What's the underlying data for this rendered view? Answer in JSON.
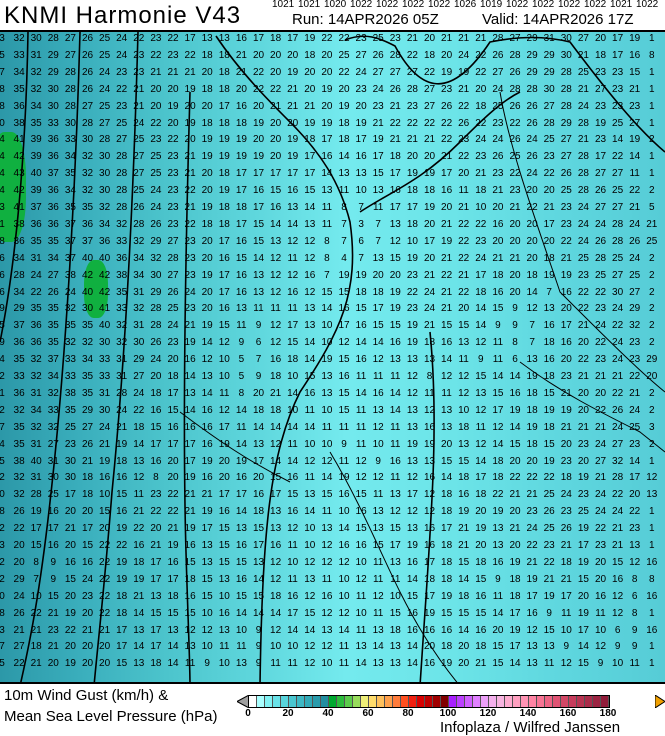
{
  "header": {
    "title": "KNMI Harmonie V43",
    "run": "Run: 14APR2026 05Z",
    "valid": "Valid: 14APR2026 17Z"
  },
  "map": {
    "credit": "Infoplaza / Wilfred Janssen",
    "isobar_labels": [
      "1021",
      "1021",
      "1020",
      "1022",
      "1022",
      "1022",
      "1022",
      "1026",
      "1019",
      "1022",
      "1022",
      "1022",
      "1022",
      "1021",
      "1022"
    ],
    "gust_rows": [
      "3 32 30 28 27 26 25 24 22 23 22 17 13 13 16 17 18 17 19 22 22 23 25 23 21 20 21 21 21 28 27 29 31 30 27 20 17 19 1",
      "5 33 31 29 27 26 25 24 23 22 23 22 18 18 21 20 20 20 18 20 25 27 26 28 22 18 20 24 22 26 28 29 29 30 21 18 17 16 8",
      "7 34 32 29 28 26 24 23 23 21 21 21 20 18 21 22 20 19 20 20 22 24 27 27 27 22 19 19 22 27 26 29 29 28 25 23 23 15 1",
      "8 35 32 30 28 26 24 22 21 20 20 19 18 18 20 22 22 21 20 19 20 23 24 26 28 27 23 21 20 24 28 28 30 28 21 27 23 21 1",
      "8 36 34 30 28 27 25 23 21 20 19 20 20 17 16 20 21 21 21 20 19 20 23 21 23 27 26 22 18 25 26 26 27 28 24 23 23 23 1",
      "0 38 35 33 30 28 27 25 24 22 20 19 18 18 18 19 20 20 19 19 18 19 21 22 22 22 22 26 22 23 22 26 28 29 28 19 25 27 1",
      "4 41 39 36 33 30 28 27 25 23 22 20 19 19 19 20 20 19 18 17 18 17 19 21 21 21 22 23 24 24 26 24 25 27 21 23 14 19 2",
      "4 42 39 36 34 32 30 28 27 25 23 21 19 19 19 19 20 19 17 16 14 16 17 18 20 20 21 22 23 26 25 26 23 27 28 17 22 14 1",
      "4 43 40 37 35 32 30 28 27 25 23 21 20 18 17 17 17 17 17 14 13 13 15 17 19 19 17 20 21 23 22 24 22 26 28 27 27 11 1",
      "4 42 39 36 34 32 30 28 25 24 23 22 20 19 17 16 15 16 15 13 11 10 13 16 18 18 16 11 18 21 23 20 20 25 28 26 25 22 2",
      "3 41 37 36 35 35 32 28 26 24 23 21 19 18 18 17 16 13 14 11 8 7 11 17 17 19 20 21 10 20 21 22 21 23 24 27 27 21 5",
      "1 38 36 36 37 36 34 32 28 26 23 22 18 18 17 15 14 14 13 11 7 3 7 13 18 20 21 22 22 16 20 20 17 23 24 24 28 24 21",
      "8 36 35 35 37 37 36 33 32 29 27 23 20 17 16 15 13 12 12 8 7 6 7 12 10 17 19 22 23 20 20 20 20 22 24 26 28 26 25",
      "6 34 31 34 37 40 40 36 34 32 28 23 20 16 15 14 12 11 12 8 4 7 13 15 19 20 21 22 24 21 21 20 18 21 25 28 25 24 2",
      "6 28 24 27 38 42 42 38 34 30 27 23 19 17 16 13 12 12 16 7 19 19 20 20 23 21 22 21 17 18 20 18 19 19 23 25 27 25 2",
      "6 34 22 26 24 40 42 35 31 29 26 24 20 17 16 13 12 16 12 15 15 18 18 19 22 24 21 22 18 16 20 14 7 16 22 22 30 27 2",
      "9 29 35 35 32 30 41 33 32 28 25 23 20 16 13 11 11 11 13 14 16 15 17 19 23 24 21 20 14 15 9 12 13 20 22 23 24 29 2",
      "5 37 36 35 35 35 40 32 31 28 24 21 19 15 11 9 12 17 13 10 17 16 15 15 19 21 15 15 14 9 9 7 16 17 21 24 22 32 2",
      "9 36 36 35 32 32 30 32 30 26 23 19 14 12 9 6 12 15 14 10 12 14 14 16 19 18 16 13 12 11 8 7 18 16 20 22 24 23 2",
      "4 35 32 37 33 34 33 31 29 24 20 16 12 10 5 7 16 18 14 19 15 16 12 13 13 13 14 11 9 11 6 13 16 20 22 23 24 23 29",
      "2 33 32 34 33 35 33 31 27 20 18 14 13 10 5 9 18 10 15 13 16 11 11 11 12 8 12 12 15 14 14 19 18 23 21 21 21 22 20",
      "1 36 31 32 38 35 31 28 24 18 17 13 14 11 8 20 21 14 16 13 15 14 16 14 12 11 11 12 13 15 16 18 15 21 20 20 22 21 2",
      "2 32 34 33 35 29 30 24 22 16 15 14 16 12 14 18 18 10 11 10 15 11 13 14 13 12 13 10 12 17 19 18 19 19 20 22 26 24 2",
      "7 35 32 32 25 27 24 21 18 15 16 16 16 17 11 14 14 14 14 11 11 11 12 11 13 16 13 18 11 12 14 19 18 21 21 21 24 25 3",
      "4 35 31 27 23 26 21 19 14 17 17 17 16 19 14 13 12 11 10 10 9 11 10 11 19 19 20 13 12 14 15 18 15 20 23 24 27 23 2",
      "5 38 40 31 30 21 19 18 13 16 20 17 19 20 19 17 14 14 12 12 11 12 9 16 13 13 15 15 14 18 20 20 19 23 20 27 32 14 1",
      "2 32 31 30 30 18 16 16 12 8 20 19 16 20 16 20 15 16 11 14 19 12 12 11 12 16 14 18 17 18 22 22 22 18 19 21 28 17 12",
      "0 32 28 25 17 18 10 15 11 23 22 21 21 17 17 16 17 15 13 15 16 15 11 13 17 12 18 16 18 22 21 21 25 24 23 24 22 20 13",
      "8 26 19 16 20 20 15 16 21 22 22 21 19 16 14 18 13 16 14 11 10 16 13 12 12 12 18 19 20 19 20 23 26 23 25 24 24 22 1",
      "2 22 17 17 21 17 20 19 22 20 21 19 17 15 13 15 13 12 10 13 14 15 13 15 13 16 17 21 19 13 21 24 25 26 19 22 21 23 1",
      "3 20 15 16 20 15 22 22 16 21 19 16 13 15 16 17 16 11 10 12 16 16 15 17 19 16 18 21 20 13 20 22 23 21 17 23 21 13 1",
      "2 20 8 9 16 16 22 19 18 17 16 15 13 15 15 13 12 10 12 12 12 10 11 13 16 17 18 15 18 16 19 21 22 18 19 20 15 12 16",
      "2 29 7 9 15 24 22 19 19 17 17 18 15 13 16 14 12 11 13 11 10 12 11 11 14 18 18 14 15 9 18 19 21 21 15 20 16 8 8",
      "0 24 10 15 20 23 22 18 21 13 18 16 15 10 15 15 18 16 12 16 10 11 12 10 15 17 19 18 16 11 18 17 19 17 20 16 12 6 16",
      "8 26 22 21 19 20 22 18 14 15 15 15 10 16 14 14 14 17 15 12 12 10 11 15 16 19 15 15 15 14 17 16 9 11 19 11 12 8 1",
      "3 21 21 23 22 21 21 17 13 17 13 12 12 13 10 9 12 14 14 13 14 11 13 18 16 16 16 14 16 20 19 12 15 10 17 10 6 9 16",
      "7 27 18 21 20 20 20 17 14 17 14 13 10 11 11 9 10 10 12 12 11 13 14 13 14 20 18 20 18 15 17 13 13 9 14 12 9 9 1",
      "5 22 21 20 19 20 20 15 13 18 14 11 9 10 13 9 11 11 12 10 11 14 13 13 14 16 19 20 21 15 14 13 11 12 15 9 10 11 1"
    ]
  },
  "legend": {
    "line1": "10m Wind Gust (km/h) &",
    "line2": "Mean Sea Level Pressure (hPa)",
    "ticks": [
      "0",
      "20",
      "40",
      "60",
      "80",
      "100",
      "120",
      "140",
      "160",
      "180"
    ],
    "range": [
      0,
      180
    ],
    "step": 4,
    "colors": [
      "#ffffff",
      "#aaffff",
      "#82f2f4",
      "#6ae2e8",
      "#58d4dc",
      "#4ac6d0",
      "#3eb8c4",
      "#32aab8",
      "#2a9cac",
      "#228ea0",
      "#00a830",
      "#2cbc3c",
      "#5ccc4c",
      "#98dc5c",
      "#eeee78",
      "#ffdc6c",
      "#ffc05c",
      "#ffa04c",
      "#ff7c3c",
      "#ff5020",
      "#f02010",
      "#d80000",
      "#c00000",
      "#a00000",
      "#800000",
      "#a820ff",
      "#bc40ff",
      "#d060ff",
      "#e080ff",
      "#eca0f8",
      "#f4b0ec",
      "#f8b4e0",
      "#ffacd0",
      "#ffa0c0",
      "#ff94b4",
      "#ff84a4",
      "#f87494",
      "#ee6484",
      "#e05474",
      "#d24866",
      "#c63c5c",
      "#b83452",
      "#aa2c4a",
      "#9c2442",
      "#901c3a"
    ],
    "under_color": "#a0a0a0",
    "over_color": "#f0a000"
  }
}
